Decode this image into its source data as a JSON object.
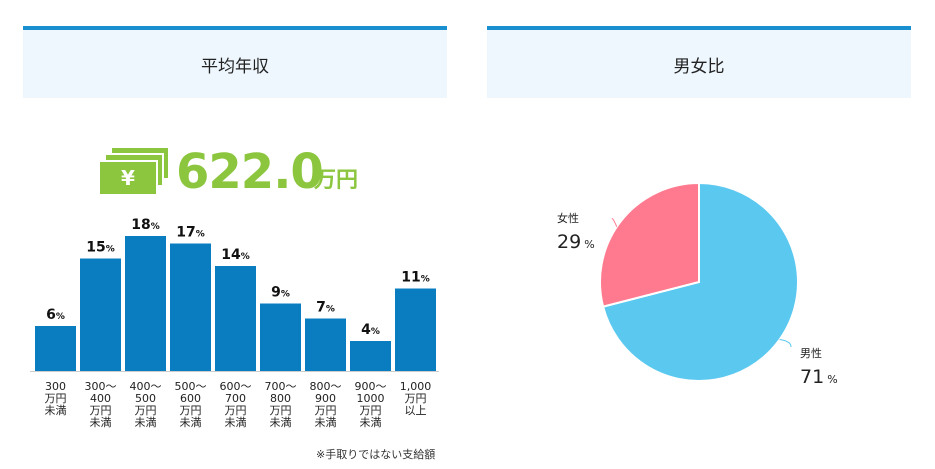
{
  "panels": {
    "left_title": "平均年収",
    "right_title": "男女比"
  },
  "salary": {
    "value": "622.0",
    "unit": "万円",
    "icon": "yen-bills-icon",
    "color": "#8cc63f"
  },
  "footnote": "※手取りではない支給額",
  "chart_data": [
    {
      "type": "bar",
      "categories": [
        [
          "300",
          "万円",
          "未満"
        ],
        [
          "300〜",
          "400",
          "万円",
          "未満"
        ],
        [
          "400〜",
          "500",
          "万円",
          "未満"
        ],
        [
          "500〜",
          "600",
          "万円",
          "未満"
        ],
        [
          "600〜",
          "700",
          "万円",
          "未満"
        ],
        [
          "700〜",
          "800",
          "万円",
          "未満"
        ],
        [
          "800〜",
          "900",
          "万円",
          "未満"
        ],
        [
          "900〜",
          "1000",
          "万円",
          "未満"
        ],
        [
          "1,000",
          "万円",
          "以上"
        ]
      ],
      "values": [
        6,
        15,
        18,
        17,
        14,
        9,
        7,
        4,
        11
      ],
      "value_suffix": "%",
      "ylim": [
        0,
        18
      ],
      "bar_color": "#0a7dc0",
      "grid": false
    },
    {
      "type": "pie",
      "slices": [
        {
          "label": "男性",
          "value": 71,
          "suffix": "%",
          "color": "#5bc8f0"
        },
        {
          "label": "女性",
          "value": 29,
          "suffix": "%",
          "color": "#ff7a8f"
        }
      ]
    }
  ]
}
